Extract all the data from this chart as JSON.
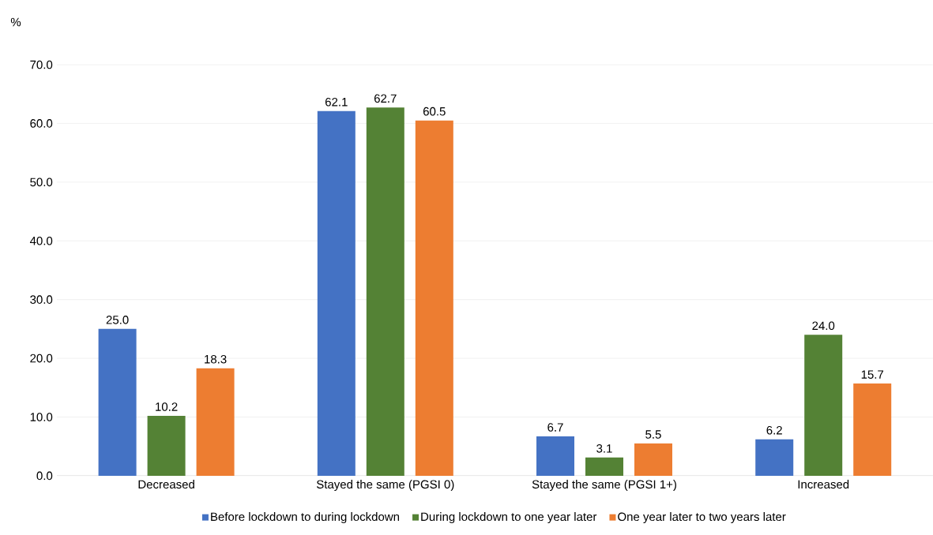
{
  "chart_data": {
    "type": "bar",
    "ylabel": "%",
    "categories": [
      "Decreased",
      "Stayed the same (PGSI 0)",
      "Stayed the same (PGSI 1+)",
      "Increased"
    ],
    "series": [
      {
        "name": "Before lockdown to during lockdown",
        "color": "#4472c4",
        "values": [
          25.0,
          62.1,
          6.7,
          6.2
        ],
        "value_labels": [
          "25.0",
          "62.1",
          "6.7",
          "6.2"
        ]
      },
      {
        "name": "During lockdown to one year later",
        "color": "#548235",
        "values": [
          10.2,
          62.7,
          3.1,
          24.0
        ],
        "value_labels": [
          "10.2",
          "62.7",
          "3.1",
          "24.0"
        ]
      },
      {
        "name": "One year later to two years later",
        "color": "#ed7d31",
        "values": [
          18.3,
          60.5,
          5.5,
          15.7
        ],
        "value_labels": [
          "18.3",
          "60.5",
          "5.5",
          "15.7"
        ]
      }
    ],
    "ylim": [
      0,
      70
    ],
    "yticks": [
      {
        "value": 0,
        "label": "0.0"
      },
      {
        "value": 10,
        "label": "10.0"
      },
      {
        "value": 20,
        "label": "20.0"
      },
      {
        "value": 30,
        "label": "30.0"
      },
      {
        "value": 40,
        "label": "40.0"
      },
      {
        "value": 50,
        "label": "50.0"
      },
      {
        "value": 60,
        "label": "60.0"
      },
      {
        "value": 70,
        "label": "70.0"
      }
    ],
    "grid": "y",
    "legend": "bottom"
  }
}
